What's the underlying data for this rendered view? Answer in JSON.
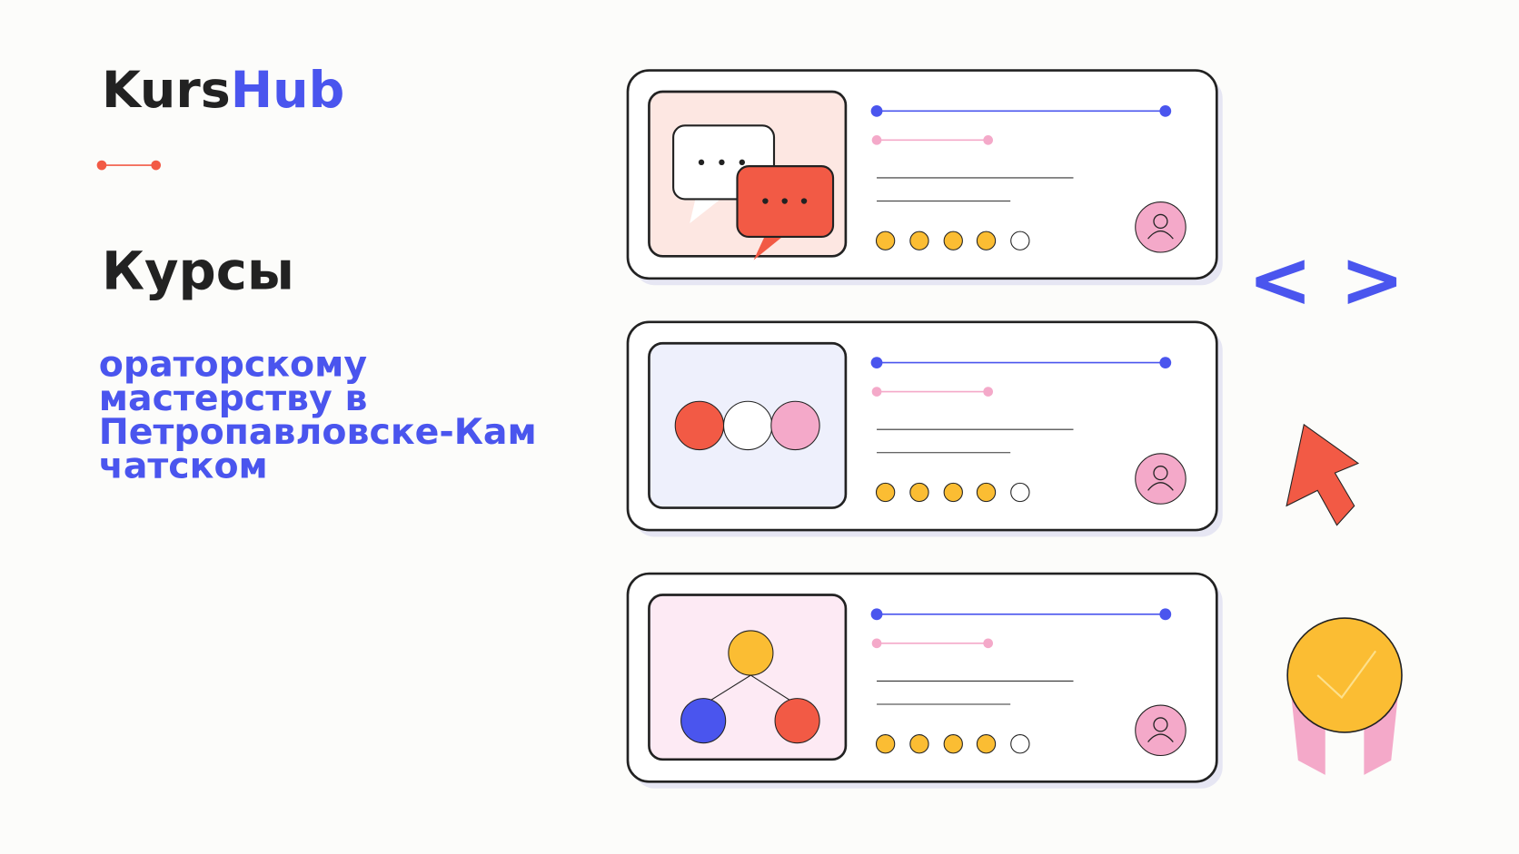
{
  "logo": {
    "part1": "Kurs",
    "part2": "Hub"
  },
  "title": "Курсы",
  "subtitle_lines": [
    "ораторскому",
    "мастерству в",
    "Петропавловске-Кам",
    "чатском"
  ]
}
